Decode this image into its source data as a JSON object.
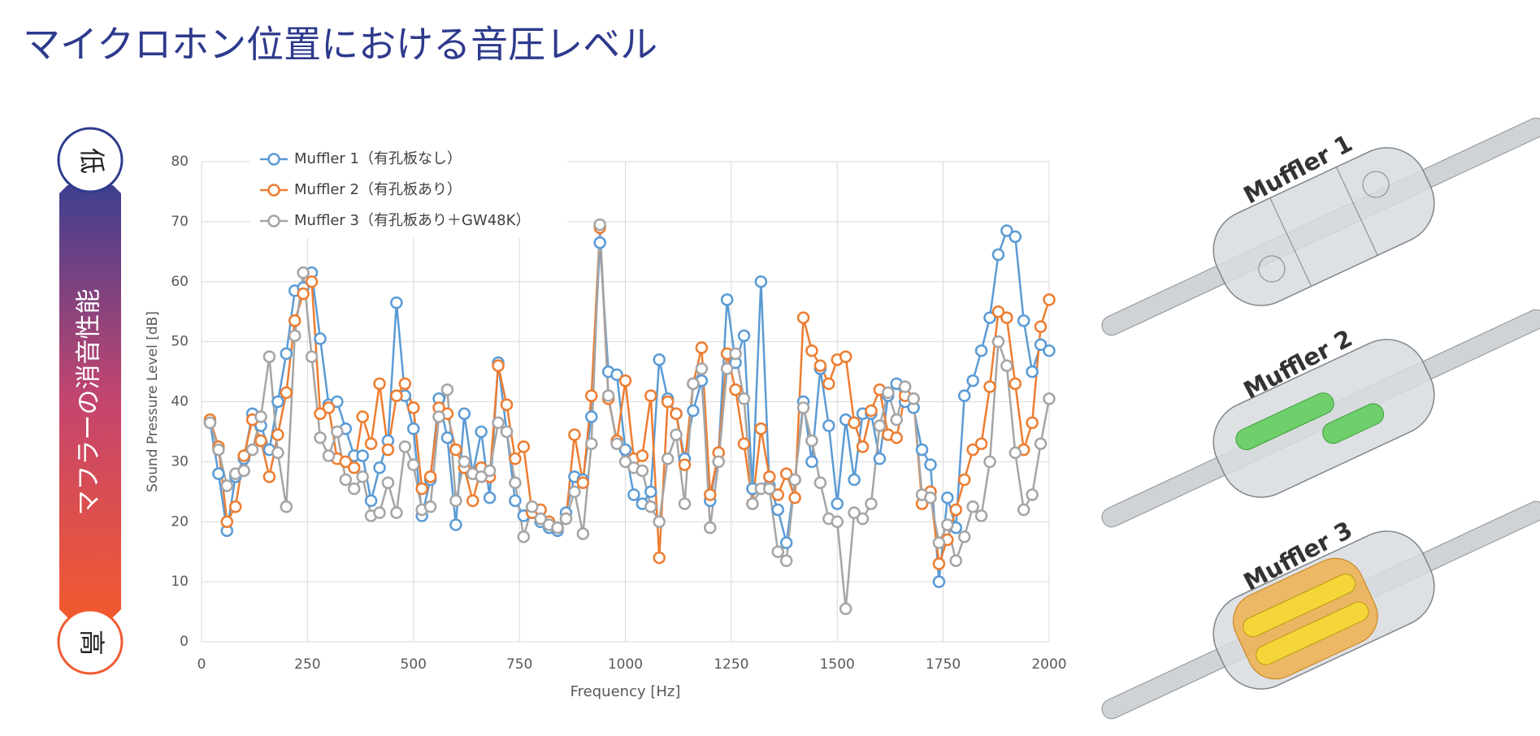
{
  "title": "マイクロホン位置における音圧レベル",
  "scale": {
    "top": "低",
    "bottom": "高",
    "caption": "マフラーの消音性能"
  },
  "models": [
    "Muffler 1",
    "Muffler 2",
    "Muffler 3"
  ],
  "chart_data": {
    "type": "line",
    "x_label": "Frequency [Hz]",
    "y_label": "Sound Pressure Level [dB]",
    "x": [
      20,
      40,
      60,
      80,
      100,
      120,
      140,
      160,
      180,
      200,
      220,
      240,
      260,
      280,
      300,
      320,
      340,
      360,
      380,
      400,
      420,
      440,
      460,
      480,
      500,
      520,
      540,
      560,
      580,
      600,
      620,
      640,
      660,
      680,
      700,
      720,
      740,
      760,
      780,
      800,
      820,
      840,
      860,
      880,
      900,
      920,
      940,
      960,
      980,
      1000,
      1020,
      1040,
      1060,
      1080,
      1100,
      1120,
      1140,
      1160,
      1180,
      1200,
      1220,
      1240,
      1260,
      1280,
      1300,
      1320,
      1340,
      1360,
      1380,
      1400,
      1420,
      1440,
      1460,
      1480,
      1500,
      1520,
      1540,
      1560,
      1580,
      1600,
      1620,
      1640,
      1660,
      1680,
      1700,
      1720,
      1740,
      1760,
      1780,
      1800,
      1820,
      1840,
      1860,
      1880,
      1900,
      1920,
      1940,
      1960,
      1980,
      2000
    ],
    "series": [
      {
        "name": "Muffler 1（有孔板なし）",
        "color": "#5b9bd5",
        "values": [
          36.5,
          28,
          18.5,
          27.5,
          30.5,
          38,
          36,
          32,
          40,
          48,
          58.5,
          59,
          61.5,
          50.5,
          39.5,
          40,
          35.5,
          31,
          31,
          23.5,
          29,
          33.5,
          56.5,
          41,
          35.5,
          21,
          27,
          40.5,
          34,
          19.5,
          38,
          28,
          35,
          24,
          46.5,
          35,
          23.5,
          21,
          22,
          20,
          19,
          18.5,
          21.5,
          27.5,
          27,
          37.5,
          66.5,
          45,
          44.5,
          32,
          24.5,
          23,
          25,
          47,
          40.5,
          38,
          30.5,
          38.5,
          43.5,
          23.5,
          31.5,
          57,
          46.5,
          51,
          25.5,
          60,
          26,
          22,
          16.5,
          27,
          40,
          30,
          45.5,
          36,
          23,
          37,
          27,
          38,
          38,
          30.5,
          41,
          43,
          40,
          39,
          32,
          29.5,
          10,
          24,
          19,
          41,
          43.5,
          48.5,
          54,
          64.5,
          68.5,
          67.5,
          53.5,
          45,
          49.5,
          48.5
        ]
      },
      {
        "name": "Muffler 2（有孔板あり）",
        "color": "#ed7d31",
        "values": [
          37,
          32.5,
          20,
          22.5,
          31,
          37,
          33.5,
          27.5,
          34.5,
          41.5,
          53.5,
          58,
          60,
          38,
          39,
          30.5,
          30,
          29,
          37.5,
          33,
          43,
          32,
          41,
          43,
          39,
          25.5,
          27.5,
          39,
          38,
          32,
          29,
          23.5,
          29,
          27.5,
          46,
          39.5,
          30.5,
          32.5,
          21.5,
          22,
          20,
          19,
          20.5,
          34.5,
          26.5,
          41,
          69,
          40.5,
          33.5,
          43.5,
          30.5,
          31,
          41,
          14,
          40,
          38,
          29.5,
          43,
          49,
          24.5,
          31.5,
          48,
          42,
          33,
          23,
          35.5,
          27.5,
          24.5,
          28,
          24,
          54,
          48.5,
          46,
          43,
          47,
          47.5,
          36.5,
          32.5,
          38.5,
          42,
          34.5,
          34,
          41,
          40.5,
          23,
          25,
          13,
          17,
          22,
          27,
          32,
          33,
          42.5,
          55,
          54,
          43,
          32,
          36.5,
          52.5,
          57
        ]
      },
      {
        "name": "Muffler 3（有孔板あり＋GW48K）",
        "color": "#a5a5a5",
        "values": [
          36.5,
          32,
          26,
          28,
          28.5,
          32,
          37.5,
          47.5,
          31.5,
          22.5,
          51,
          61.5,
          47.5,
          34,
          31,
          35,
          27,
          25.5,
          27.5,
          21,
          21.5,
          26.5,
          21.5,
          32.5,
          29.5,
          22,
          22.5,
          37.5,
          42,
          23.5,
          30,
          28,
          27.5,
          28.5,
          36.5,
          35,
          26.5,
          17.5,
          22.5,
          20.5,
          19.5,
          19,
          20.5,
          25,
          18,
          33,
          69.5,
          41,
          33,
          30,
          29,
          28.5,
          22.5,
          20,
          30.5,
          34.5,
          23,
          43,
          45.5,
          19,
          30,
          45.5,
          48,
          40.5,
          23,
          25.5,
          25.5,
          15,
          13.5,
          27,
          39,
          33.5,
          26.5,
          20.5,
          20,
          5.5,
          21.5,
          20.5,
          23,
          36,
          41.5,
          37,
          42.5,
          40.5,
          24.5,
          24,
          16.5,
          19.5,
          13.5,
          17.5,
          22.5,
          21,
          30,
          50,
          46,
          31.5,
          22,
          24.5,
          33,
          40.5
        ]
      }
    ],
    "xlim": [
      0,
      2000
    ],
    "xticks": [
      0,
      250,
      500,
      750,
      1000,
      1250,
      1500,
      1750,
      2000
    ],
    "ylim": [
      0,
      80
    ],
    "yticks": [
      0,
      10,
      20,
      30,
      40,
      50,
      60,
      70,
      80
    ],
    "grid": true,
    "legend": "top-left"
  }
}
